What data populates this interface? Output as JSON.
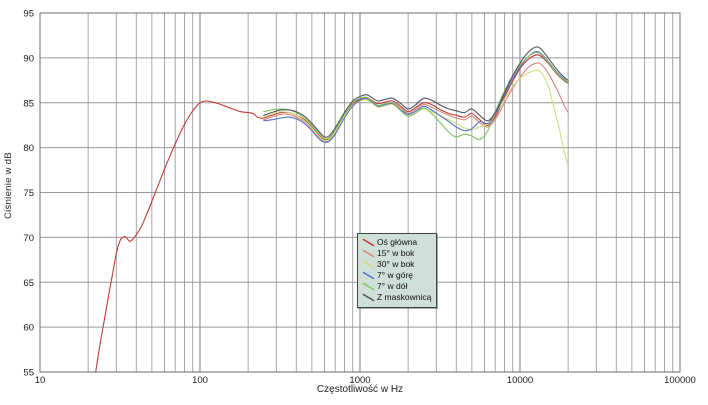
{
  "chart_data": {
    "type": "line",
    "title": "",
    "xlabel": "Częstotliwość w Hz",
    "ylabel": "Ciśnienie w dB",
    "x_scale": "log",
    "xlim": [
      10,
      100000
    ],
    "ylim": [
      55,
      95
    ],
    "x_ticks": [
      10,
      100,
      1000,
      10000,
      100000
    ],
    "y_ticks": [
      55,
      60,
      65,
      70,
      75,
      80,
      85,
      90,
      95
    ],
    "grid": true,
    "legend_position": "center-bottom",
    "series": [
      {
        "name": "Oś główna",
        "color": "#c43a3a",
        "points": [
          [
            22.3,
            55
          ],
          [
            23,
            56.6
          ],
          [
            24,
            58.6
          ],
          [
            25,
            60.4
          ],
          [
            26,
            62.1
          ],
          [
            27,
            63.8
          ],
          [
            28,
            65.3
          ],
          [
            29,
            66.8
          ],
          [
            30,
            68.2
          ],
          [
            31,
            69.2
          ],
          [
            32,
            69.8
          ],
          [
            33,
            70.0
          ],
          [
            34,
            70.1
          ],
          [
            35,
            69.9
          ],
          [
            36,
            69.6
          ],
          [
            37,
            69.6
          ],
          [
            38,
            69.8
          ],
          [
            40,
            70.3
          ],
          [
            43,
            71.2
          ],
          [
            46,
            72.4
          ],
          [
            50,
            74.0
          ],
          [
            55,
            75.9
          ],
          [
            60,
            77.6
          ],
          [
            65,
            79.1
          ],
          [
            70,
            80.4
          ],
          [
            75,
            81.6
          ],
          [
            80,
            82.6
          ],
          [
            85,
            83.4
          ],
          [
            90,
            84.1
          ],
          [
            95,
            84.6
          ],
          [
            100,
            85.0
          ],
          [
            108,
            85.2
          ],
          [
            118,
            85.1
          ],
          [
            130,
            84.9
          ],
          [
            145,
            84.6
          ],
          [
            160,
            84.3
          ],
          [
            180,
            84.0
          ],
          [
            200,
            83.9
          ],
          [
            215,
            83.8
          ],
          [
            228,
            83.4
          ],
          [
            240,
            83.3
          ],
          [
            250,
            83.3
          ],
          [
            280,
            83.6
          ],
          [
            320,
            83.9
          ],
          [
            360,
            83.9
          ],
          [
            400,
            83.6
          ],
          [
            450,
            83.1
          ],
          [
            500,
            82.3
          ],
          [
            560,
            81.3
          ],
          [
            600,
            80.9
          ],
          [
            640,
            81.0
          ],
          [
            700,
            81.9
          ],
          [
            800,
            83.6
          ],
          [
            900,
            84.9
          ],
          [
            1000,
            85.4
          ],
          [
            1100,
            85.6
          ],
          [
            1200,
            85.2
          ],
          [
            1300,
            84.9
          ],
          [
            1450,
            85.1
          ],
          [
            1600,
            85.2
          ],
          [
            1800,
            84.6
          ],
          [
            2000,
            84.0
          ],
          [
            2200,
            84.4
          ],
          [
            2500,
            85.0
          ],
          [
            2800,
            84.8
          ],
          [
            3200,
            84.2
          ],
          [
            3600,
            83.8
          ],
          [
            4000,
            83.6
          ],
          [
            4500,
            83.4
          ],
          [
            5000,
            83.8
          ],
          [
            5600,
            83.1
          ],
          [
            6300,
            82.5
          ],
          [
            7100,
            83.6
          ],
          [
            8000,
            85.6
          ],
          [
            9000,
            87.4
          ],
          [
            10000,
            88.8
          ],
          [
            11200,
            89.8
          ],
          [
            12500,
            90.3
          ],
          [
            13500,
            90.2
          ],
          [
            15000,
            89.4
          ],
          [
            17000,
            88.2
          ],
          [
            19000,
            87.4
          ],
          [
            20000,
            87.2
          ]
        ]
      },
      {
        "name": "15° w bok",
        "color": "#d4897a",
        "points": [
          [
            250,
            83.1
          ],
          [
            280,
            83.4
          ],
          [
            320,
            83.7
          ],
          [
            360,
            83.7
          ],
          [
            400,
            83.4
          ],
          [
            450,
            82.9
          ],
          [
            500,
            82.1
          ],
          [
            560,
            81.1
          ],
          [
            600,
            80.7
          ],
          [
            640,
            80.8
          ],
          [
            700,
            81.7
          ],
          [
            800,
            83.4
          ],
          [
            900,
            84.7
          ],
          [
            1000,
            85.2
          ],
          [
            1100,
            85.4
          ],
          [
            1200,
            85.0
          ],
          [
            1300,
            84.7
          ],
          [
            1450,
            84.9
          ],
          [
            1600,
            85.0
          ],
          [
            1800,
            84.4
          ],
          [
            2000,
            83.8
          ],
          [
            2200,
            84.2
          ],
          [
            2500,
            84.8
          ],
          [
            2800,
            84.5
          ],
          [
            3200,
            84.0
          ],
          [
            3600,
            83.6
          ],
          [
            4000,
            83.3
          ],
          [
            4500,
            83.1
          ],
          [
            5000,
            83.5
          ],
          [
            5600,
            82.8
          ],
          [
            6300,
            82.3
          ],
          [
            7100,
            83.3
          ],
          [
            8000,
            85.0
          ],
          [
            9000,
            86.6
          ],
          [
            10000,
            87.8
          ],
          [
            11200,
            88.9
          ],
          [
            12500,
            89.4
          ],
          [
            13500,
            89.3
          ],
          [
            15000,
            88.3
          ],
          [
            17000,
            86.5
          ],
          [
            19000,
            84.6
          ],
          [
            20000,
            83.9
          ]
        ]
      },
      {
        "name": "30° w bok",
        "color": "#d2de7c",
        "points": [
          [
            250,
            83.4
          ],
          [
            280,
            83.7
          ],
          [
            320,
            84.0
          ],
          [
            360,
            83.9
          ],
          [
            400,
            83.6
          ],
          [
            450,
            83.0
          ],
          [
            500,
            82.2
          ],
          [
            560,
            81.2
          ],
          [
            600,
            80.8
          ],
          [
            640,
            80.9
          ],
          [
            700,
            81.8
          ],
          [
            800,
            83.5
          ],
          [
            900,
            84.7
          ],
          [
            1000,
            85.2
          ],
          [
            1100,
            85.3
          ],
          [
            1200,
            84.9
          ],
          [
            1300,
            84.5
          ],
          [
            1450,
            84.7
          ],
          [
            1600,
            84.8
          ],
          [
            1800,
            84.1
          ],
          [
            2000,
            83.5
          ],
          [
            2200,
            83.8
          ],
          [
            2500,
            84.3
          ],
          [
            2800,
            84.0
          ],
          [
            3200,
            83.5
          ],
          [
            3600,
            83.1
          ],
          [
            4000,
            82.7
          ],
          [
            4500,
            82.2
          ],
          [
            5000,
            82.0
          ],
          [
            5600,
            82.3
          ],
          [
            6300,
            82.7
          ],
          [
            7100,
            83.9
          ],
          [
            8000,
            85.4
          ],
          [
            9000,
            86.8
          ],
          [
            10000,
            87.7
          ],
          [
            11200,
            88.3
          ],
          [
            12500,
            88.6
          ],
          [
            13500,
            88.4
          ],
          [
            15000,
            86.9
          ],
          [
            16000,
            85.0
          ],
          [
            17500,
            82.3
          ],
          [
            19000,
            79.4
          ],
          [
            20000,
            78.0
          ]
        ]
      },
      {
        "name": "7° w górę",
        "color": "#5873c8",
        "points": [
          [
            250,
            83.0
          ],
          [
            280,
            83.1
          ],
          [
            320,
            83.3
          ],
          [
            360,
            83.4
          ],
          [
            400,
            83.2
          ],
          [
            450,
            82.7
          ],
          [
            500,
            81.9
          ],
          [
            560,
            80.9
          ],
          [
            600,
            80.6
          ],
          [
            640,
            80.7
          ],
          [
            700,
            81.5
          ],
          [
            800,
            83.3
          ],
          [
            900,
            84.6
          ],
          [
            1000,
            85.3
          ],
          [
            1100,
            85.5
          ],
          [
            1200,
            85.0
          ],
          [
            1300,
            84.6
          ],
          [
            1450,
            84.8
          ],
          [
            1600,
            84.9
          ],
          [
            1800,
            84.2
          ],
          [
            2000,
            83.7
          ],
          [
            2200,
            84.0
          ],
          [
            2500,
            84.6
          ],
          [
            2800,
            84.2
          ],
          [
            3200,
            83.5
          ],
          [
            3600,
            82.9
          ],
          [
            4000,
            82.3
          ],
          [
            4500,
            81.9
          ],
          [
            5000,
            82.1
          ],
          [
            5600,
            82.9
          ],
          [
            6300,
            82.7
          ],
          [
            7100,
            83.9
          ],
          [
            8000,
            85.9
          ],
          [
            9000,
            87.7
          ],
          [
            10000,
            89.0
          ],
          [
            11200,
            90.1
          ],
          [
            12500,
            90.7
          ],
          [
            13500,
            90.5
          ],
          [
            15000,
            89.6
          ],
          [
            17000,
            88.4
          ],
          [
            19000,
            87.6
          ],
          [
            20000,
            87.3
          ]
        ]
      },
      {
        "name": "7° w dół",
        "color": "#7cc45e",
        "points": [
          [
            250,
            84.0
          ],
          [
            280,
            84.2
          ],
          [
            320,
            84.3
          ],
          [
            360,
            84.2
          ],
          [
            400,
            83.9
          ],
          [
            450,
            83.3
          ],
          [
            500,
            82.5
          ],
          [
            560,
            81.5
          ],
          [
            600,
            81.0
          ],
          [
            640,
            81.1
          ],
          [
            700,
            82.0
          ],
          [
            800,
            83.7
          ],
          [
            900,
            85.0
          ],
          [
            1000,
            85.5
          ],
          [
            1100,
            85.6
          ],
          [
            1200,
            85.1
          ],
          [
            1300,
            84.7
          ],
          [
            1450,
            84.9
          ],
          [
            1600,
            85.0
          ],
          [
            1800,
            84.1
          ],
          [
            2000,
            83.5
          ],
          [
            2200,
            83.8
          ],
          [
            2500,
            84.4
          ],
          [
            2800,
            83.8
          ],
          [
            3200,
            82.7
          ],
          [
            3600,
            81.7
          ],
          [
            4000,
            81.2
          ],
          [
            4500,
            81.5
          ],
          [
            5000,
            81.3
          ],
          [
            5600,
            80.9
          ],
          [
            6300,
            81.9
          ],
          [
            7100,
            84.2
          ],
          [
            8000,
            86.3
          ],
          [
            9000,
            88.0
          ],
          [
            10000,
            89.2
          ],
          [
            11200,
            90.1
          ],
          [
            12500,
            90.6
          ],
          [
            13500,
            90.4
          ],
          [
            15000,
            89.5
          ],
          [
            17000,
            88.3
          ],
          [
            19000,
            87.5
          ],
          [
            20000,
            87.3
          ]
        ]
      },
      {
        "name": "Z maskownicą",
        "color": "#55555f",
        "points": [
          [
            250,
            83.6
          ],
          [
            280,
            83.9
          ],
          [
            320,
            84.2
          ],
          [
            360,
            84.2
          ],
          [
            400,
            84.0
          ],
          [
            450,
            83.5
          ],
          [
            500,
            82.7
          ],
          [
            560,
            81.7
          ],
          [
            600,
            81.2
          ],
          [
            640,
            81.3
          ],
          [
            700,
            82.2
          ],
          [
            800,
            83.9
          ],
          [
            900,
            85.2
          ],
          [
            1000,
            85.7
          ],
          [
            1100,
            85.9
          ],
          [
            1200,
            85.5
          ],
          [
            1300,
            85.2
          ],
          [
            1450,
            85.4
          ],
          [
            1600,
            85.5
          ],
          [
            1800,
            84.9
          ],
          [
            2000,
            84.3
          ],
          [
            2200,
            84.7
          ],
          [
            2500,
            85.5
          ],
          [
            2800,
            85.3
          ],
          [
            3200,
            84.7
          ],
          [
            3600,
            84.3
          ],
          [
            4000,
            84.1
          ],
          [
            4500,
            83.9
          ],
          [
            5000,
            84.3
          ],
          [
            5600,
            83.6
          ],
          [
            6300,
            83.0
          ],
          [
            7100,
            84.1
          ],
          [
            8000,
            86.1
          ],
          [
            9000,
            88.0
          ],
          [
            10000,
            89.4
          ],
          [
            11200,
            90.6
          ],
          [
            12500,
            91.2
          ],
          [
            13500,
            91.0
          ],
          [
            15000,
            90.0
          ],
          [
            17000,
            88.7
          ],
          [
            19000,
            87.8
          ],
          [
            20000,
            87.5
          ]
        ]
      }
    ],
    "legend_colors": {
      "background": "#cfe0d8",
      "border": "#3d453f"
    }
  },
  "colors": {
    "background": "#ffffff",
    "grid_minor": "#a6a6a6",
    "grid_major": "#7a7a7a",
    "grid_horizontal": "#9a9a9a",
    "frame": "#6e6e6e",
    "tick_text": "#1a1a1a"
  }
}
